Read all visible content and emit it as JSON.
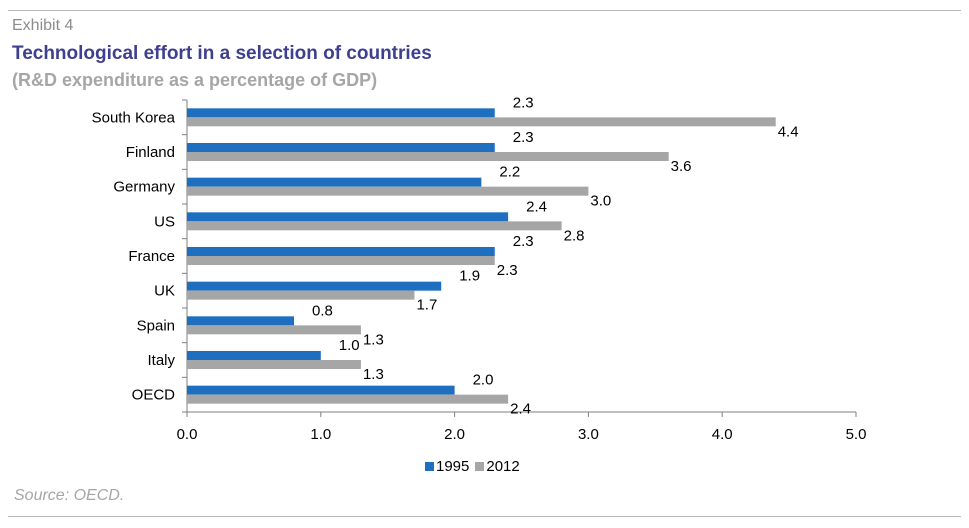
{
  "header": {
    "exhibit": "Exhibit 4",
    "title": "Technological effort in a selection of countries",
    "subtitle": "(R&D expenditure as a percentage of GDP)"
  },
  "footer": {
    "source": "Source: OECD."
  },
  "colors": {
    "series_1995": "#1f6fc0",
    "series_2012": "#a6a6a6",
    "axis": "#7f7f7f"
  },
  "chart_data": {
    "type": "bar",
    "orientation": "horizontal",
    "categories": [
      "South Korea",
      "Finland",
      "Germany",
      "US",
      "France",
      "UK",
      "Spain",
      "Italy",
      "OECD"
    ],
    "series": [
      {
        "name": "1995",
        "values": [
          2.3,
          2.3,
          2.2,
          2.4,
          2.3,
          1.9,
          0.8,
          1.0,
          2.0
        ],
        "labels": [
          "2.3",
          "2.3",
          "2.2",
          "2.4",
          "2.3",
          "1.9",
          "0.8",
          "1.0",
          "2.0"
        ]
      },
      {
        "name": "2012",
        "values": [
          4.4,
          3.6,
          3.0,
          2.8,
          2.3,
          1.7,
          1.3,
          1.3,
          2.4
        ],
        "labels": [
          "4.4",
          "3.6",
          "3.0",
          "2.8",
          "2.3",
          "1.7",
          "1.3",
          "1.3",
          "2.4"
        ]
      }
    ],
    "xlim": [
      0,
      5
    ],
    "xticks": [
      "0.0",
      "1.0",
      "2.0",
      "3.0",
      "4.0",
      "5.0"
    ],
    "grid": false,
    "legend_position": "bottom"
  }
}
